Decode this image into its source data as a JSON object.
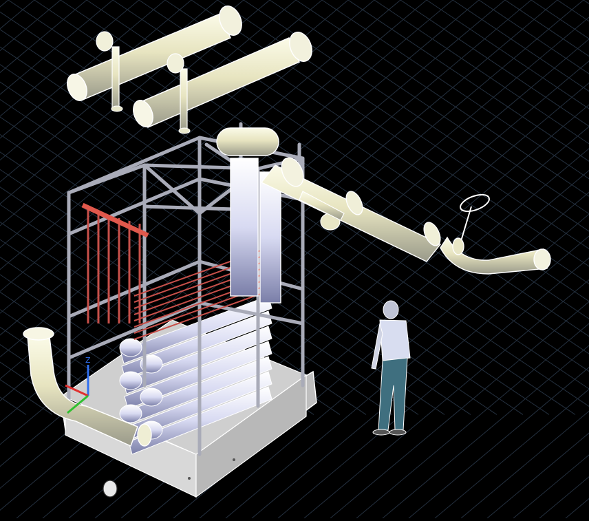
{
  "app": {
    "mode": "cad-3d-viewport",
    "visual_style": "realistic-dark"
  },
  "viewport": {
    "background": "#000000",
    "grid_color": "#24303f",
    "model_fill": "#ecead2",
    "model_edge": "#ffffff",
    "steel_color": "#7d7f8f",
    "hot_pipe_color": "#c8504a",
    "person_shirt": "#d8ddf0",
    "person_pants": "#3f6f7f"
  },
  "ucs": {
    "x_axis_color": "#e03030",
    "y_axis_color": "#30c030",
    "z_axis_color": "#3070f0",
    "z_label": "Z"
  },
  "objects": [
    "upper-left-header-pipe",
    "upper-right-header-pipe",
    "steel-frame",
    "tube-bundle",
    "vertical-separator",
    "outlet-pipe",
    "isolation-valve",
    "inlet-elbow-pipe",
    "base-skid",
    "human-figure"
  ]
}
